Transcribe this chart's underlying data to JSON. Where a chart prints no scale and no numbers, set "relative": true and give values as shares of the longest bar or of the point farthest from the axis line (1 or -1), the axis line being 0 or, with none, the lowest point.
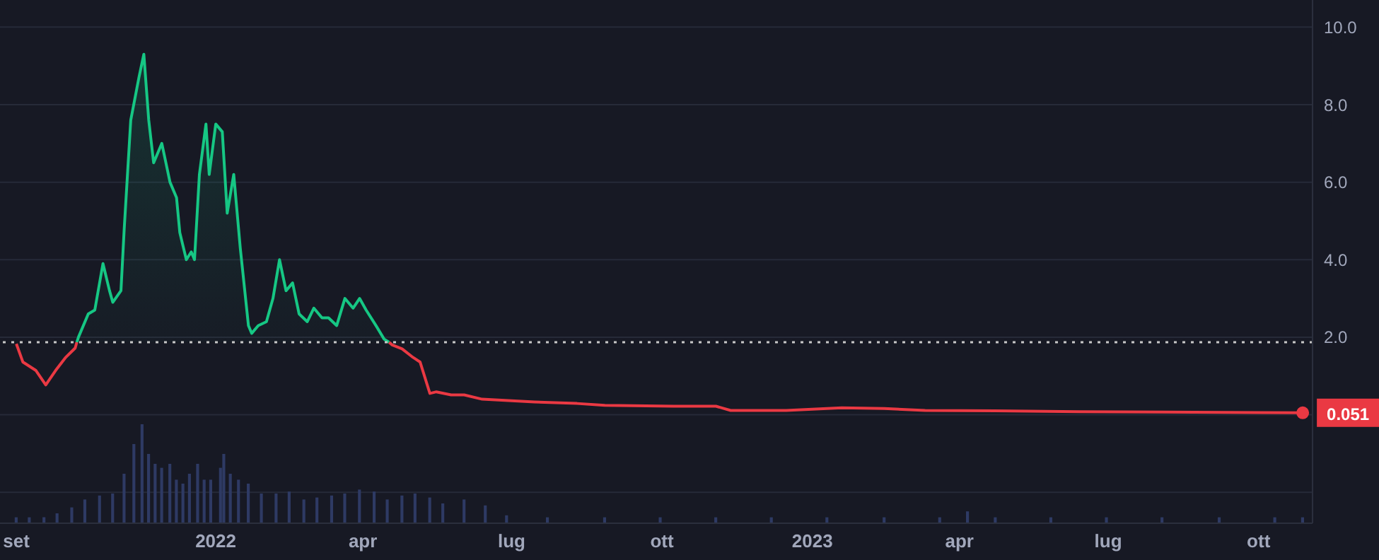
{
  "chart_data": [
    {
      "type": "area",
      "xlim": [
        "2021-08-22",
        "2023-11-03"
      ],
      "ylim": [
        -2.8,
        10.7
      ],
      "xticks": [
        {
          "value": "2021-09-01",
          "label": "set"
        },
        {
          "value": "2022-01-01",
          "label": "2022"
        },
        {
          "value": "2022-04-01",
          "label": "apr"
        },
        {
          "value": "2022-07-01",
          "label": "lug"
        },
        {
          "value": "2022-10-01",
          "label": "ott"
        },
        {
          "value": "2023-01-01",
          "label": "2023"
        },
        {
          "value": "2023-04-01",
          "label": "apr"
        },
        {
          "value": "2023-07-01",
          "label": "lug"
        },
        {
          "value": "2023-10-01",
          "label": "ott"
        }
      ],
      "yticks": [
        {
          "value": -2,
          "label": null
        },
        {
          "value": 0,
          "label": null
        },
        {
          "value": 2,
          "label": "2.0"
        },
        {
          "value": 4,
          "label": "4.0"
        },
        {
          "value": 6,
          "label": "6.0"
        },
        {
          "value": 8,
          "label": "8.0"
        },
        {
          "value": 10,
          "label": "10.0"
        }
      ],
      "grid": "y",
      "ref_lines": [
        {
          "axis": "y",
          "value": 1.87,
          "color": "#c8c8c8",
          "line_style": "dotted"
        }
      ],
      "annotations": [
        {
          "text": "0.051",
          "x": "2023-10-28",
          "y": 0.05
        }
      ],
      "series": [
        {
          "type": "line",
          "color": "#ea3943",
          "x": [
            "2021-09-01",
            "2021-09-05",
            "2021-09-13",
            "2021-09-19",
            "2021-09-25",
            "2021-10-01",
            "2021-10-07",
            "2021-10-08",
            "2022-04-17",
            "2022-04-19",
            "2022-04-25",
            "2022-05-01",
            "2022-05-06",
            "2022-05-12",
            "2022-05-16",
            "2022-05-25",
            "2022-06-02",
            "2022-06-13",
            "2022-07-15",
            "2022-08-10",
            "2022-08-27",
            "2022-10-08",
            "2022-11-03",
            "2022-11-12",
            "2022-12-16",
            "2023-01-19",
            "2023-02-14",
            "2023-03-11",
            "2023-04-23",
            "2023-06-13",
            "2023-08-03",
            "2023-10-28"
          ],
          "values": [
            1.83,
            1.36,
            1.14,
            0.77,
            1.14,
            1.47,
            1.72,
            1.87,
            1.87,
            1.8,
            1.7,
            1.5,
            1.36,
            0.55,
            0.59,
            0.51,
            0.51,
            0.4,
            0.33,
            0.29,
            0.24,
            0.22,
            0.22,
            0.11,
            0.11,
            0.18,
            0.16,
            0.11,
            0.1,
            0.08,
            0.07,
            0.05
          ]
        },
        {
          "color": "#16c784",
          "x": [
            "2021-10-08",
            "2021-10-09",
            "2021-10-15",
            "2021-10-19",
            "2021-10-24",
            "2021-10-28",
            "2021-10-30",
            "2021-11-04",
            "2021-11-06",
            "2021-11-10",
            "2021-11-15",
            "2021-11-18",
            "2021-11-21",
            "2021-11-24",
            "2021-11-29",
            "2021-12-04",
            "2021-12-08",
            "2021-12-10",
            "2021-12-14",
            "2021-12-17",
            "2021-12-19",
            "2021-12-22",
            "2021-12-26",
            "2021-12-28",
            "2022-01-01",
            "2022-01-05",
            "2022-01-08",
            "2022-01-12",
            "2022-01-16",
            "2022-01-21",
            "2022-01-23",
            "2022-01-27",
            "2022-02-01",
            "2022-02-05",
            "2022-02-09",
            "2022-02-13",
            "2022-02-17",
            "2022-02-21",
            "2022-02-26",
            "2022-03-02",
            "2022-03-07",
            "2022-03-11",
            "2022-03-16",
            "2022-03-21",
            "2022-03-26",
            "2022-03-30",
            "2022-04-03",
            "2022-04-09",
            "2022-04-14",
            "2022-04-17"
          ],
          "values": [
            1.87,
            2.0,
            2.6,
            2.7,
            3.9,
            3.2,
            2.9,
            3.2,
            4.8,
            7.6,
            8.7,
            9.3,
            7.6,
            6.5,
            7.0,
            6.0,
            5.6,
            4.7,
            4.0,
            4.2,
            4.0,
            6.2,
            7.5,
            6.2,
            7.5,
            7.3,
            5.2,
            6.2,
            4.3,
            2.3,
            2.1,
            2.3,
            2.4,
            3.0,
            4.0,
            3.2,
            3.4,
            2.6,
            2.4,
            2.75,
            2.5,
            2.5,
            2.3,
            3.0,
            2.75,
            3.0,
            2.7,
            2.3,
            1.95,
            1.87
          ]
        }
      ]
    },
    {
      "type": "bar",
      "relative": true,
      "color": "#2e3a64",
      "xlim": [
        "2021-08-22",
        "2023-11-03"
      ],
      "x": [
        "2021-09-01",
        "2021-09-09",
        "2021-09-18",
        "2021-09-26",
        "2021-10-05",
        "2021-10-13",
        "2021-10-22",
        "2021-10-30",
        "2021-11-06",
        "2021-11-12",
        "2021-11-17",
        "2021-11-21",
        "2021-11-25",
        "2021-11-29",
        "2021-12-04",
        "2021-12-08",
        "2021-12-12",
        "2021-12-16",
        "2021-12-21",
        "2021-12-25",
        "2021-12-29",
        "2022-01-04",
        "2022-01-06",
        "2022-01-10",
        "2022-01-15",
        "2022-01-21",
        "2022-01-29",
        "2022-02-07",
        "2022-02-15",
        "2022-02-24",
        "2022-03-04",
        "2022-03-13",
        "2022-03-21",
        "2022-03-30",
        "2022-04-08",
        "2022-04-16",
        "2022-04-25",
        "2022-05-03",
        "2022-05-12",
        "2022-05-20",
        "2022-06-02",
        "2022-06-15",
        "2022-06-28",
        "2022-07-23",
        "2022-08-27",
        "2022-09-30",
        "2022-11-03",
        "2022-12-07",
        "2023-01-10",
        "2023-02-14",
        "2023-03-20",
        "2023-04-06",
        "2023-04-23",
        "2023-05-27",
        "2023-06-30",
        "2023-08-03",
        "2023-09-07",
        "2023-10-11",
        "2023-10-28"
      ],
      "values": [
        0.06,
        0.06,
        0.06,
        0.1,
        0.16,
        0.24,
        0.28,
        0.3,
        0.5,
        0.8,
        1,
        0.7,
        0.6,
        0.56,
        0.6,
        0.44,
        0.4,
        0.5,
        0.6,
        0.44,
        0.44,
        0.56,
        0.7,
        0.5,
        0.44,
        0.4,
        0.3,
        0.3,
        0.32,
        0.24,
        0.26,
        0.28,
        0.3,
        0.34,
        0.32,
        0.24,
        0.28,
        0.3,
        0.26,
        0.2,
        0.24,
        0.18,
        0.08,
        0.06,
        0.06,
        0.06,
        0.06,
        0.06,
        0.06,
        0.06,
        0.06,
        0.12,
        0.06,
        0.06,
        0.06,
        0.06,
        0.06,
        0.06,
        0.06
      ]
    }
  ]
}
